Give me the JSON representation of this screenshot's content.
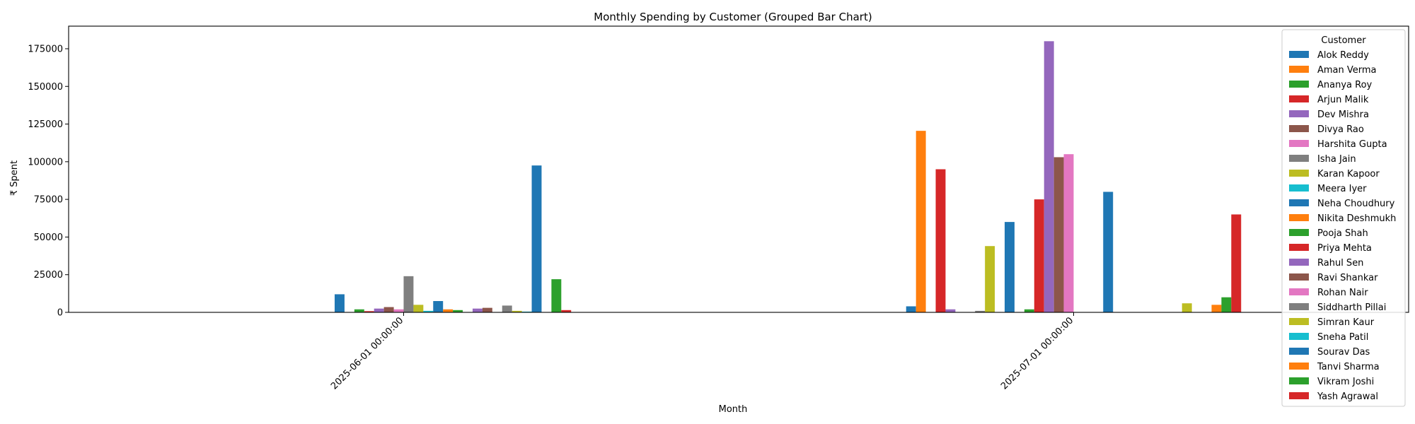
{
  "chart_data": {
    "type": "bar",
    "title": "Monthly Spending by Customer (Grouped Bar Chart)",
    "xlabel": "Month",
    "ylabel": "₹ Spent",
    "categories": [
      "2025-06-01 00:00:00",
      "2025-07-01 00:00:00"
    ],
    "ylim": [
      0,
      190000
    ],
    "yticks": [
      0,
      25000,
      50000,
      75000,
      100000,
      125000,
      150000,
      175000
    ],
    "grid": false,
    "legend_title": "Customer",
    "legend_position": "upper-right",
    "series": [
      {
        "name": "Alok Reddy",
        "color": "#1f77b4",
        "values": [
          0,
          4000
        ]
      },
      {
        "name": "Aman Verma",
        "color": "#ff7f0e",
        "values": [
          0,
          120500
        ]
      },
      {
        "name": "Ananya Roy",
        "color": "#2ca02c",
        "values": [
          0,
          0
        ]
      },
      {
        "name": "Arjun Malik",
        "color": "#d62728",
        "values": [
          0,
          95000
        ]
      },
      {
        "name": "Dev Mishra",
        "color": "#9467bd",
        "values": [
          0,
          2000
        ]
      },
      {
        "name": "Divya Rao",
        "color": "#8c564b",
        "values": [
          0,
          0
        ]
      },
      {
        "name": "Harshita Gupta",
        "color": "#e377c2",
        "values": [
          0,
          0
        ]
      },
      {
        "name": "Isha Jain",
        "color": "#7f7f7f",
        "values": [
          0,
          1000
        ]
      },
      {
        "name": "Karan Kapoor",
        "color": "#bcbd22",
        "values": [
          0,
          44000
        ]
      },
      {
        "name": "Meera Iyer",
        "color": "#17becf",
        "values": [
          0,
          0
        ]
      },
      {
        "name": "Neha Choudhury",
        "color": "#1f77b4",
        "values": [
          12000,
          60000
        ]
      },
      {
        "name": "Nikita Deshmukh",
        "color": "#ff7f0e",
        "values": [
          0,
          0
        ]
      },
      {
        "name": "Pooja Shah",
        "color": "#2ca02c",
        "values": [
          2000,
          2000
        ]
      },
      {
        "name": "Priya Mehta",
        "color": "#d62728",
        "values": [
          800,
          75000
        ]
      },
      {
        "name": "Rahul Sen",
        "color": "#9467bd",
        "values": [
          2500,
          180000
        ]
      },
      {
        "name": "Ravi Shankar",
        "color": "#8c564b",
        "values": [
          3500,
          103000
        ]
      },
      {
        "name": "Rohan Nair",
        "color": "#e377c2",
        "values": [
          2000,
          105000
        ]
      },
      {
        "name": "Siddharth Pillai",
        "color": "#7f7f7f",
        "values": [
          24000,
          0
        ]
      },
      {
        "name": "Simran Kaur",
        "color": "#bcbd22",
        "values": [
          5000,
          0
        ]
      },
      {
        "name": "Sneha Patil",
        "color": "#17becf",
        "values": [
          1000,
          0
        ]
      },
      {
        "name": "Sourav Das",
        "color": "#1f77b4",
        "values": [
          7500,
          80000
        ]
      },
      {
        "name": "Tanvi Sharma",
        "color": "#ff7f0e",
        "values": [
          2000,
          0
        ]
      },
      {
        "name": "Vikram Joshi",
        "color": "#2ca02c",
        "values": [
          1500,
          0
        ]
      },
      {
        "name": "Yash Agrawal",
        "color": "#d62728",
        "values": [
          0,
          0
        ]
      },
      {
        "name": "",
        "color": "#9467bd",
        "values": [
          2500,
          0
        ]
      },
      {
        "name": "",
        "color": "#8c564b",
        "values": [
          3000,
          0
        ]
      },
      {
        "name": "",
        "color": "#e377c2",
        "values": [
          0,
          0
        ]
      },
      {
        "name": "",
        "color": "#7f7f7f",
        "values": [
          4500,
          0
        ]
      },
      {
        "name": "",
        "color": "#bcbd22",
        "values": [
          1000,
          6000
        ]
      },
      {
        "name": "",
        "color": "#17becf",
        "values": [
          500,
          0
        ]
      },
      {
        "name": "",
        "color": "#1f77b4",
        "values": [
          97500,
          0
        ]
      },
      {
        "name": "",
        "color": "#ff7f0e",
        "values": [
          0,
          5000
        ]
      },
      {
        "name": "",
        "color": "#2ca02c",
        "values": [
          22000,
          10000
        ]
      },
      {
        "name": "",
        "color": "#d62728",
        "values": [
          1500,
          65000
        ]
      }
    ]
  }
}
